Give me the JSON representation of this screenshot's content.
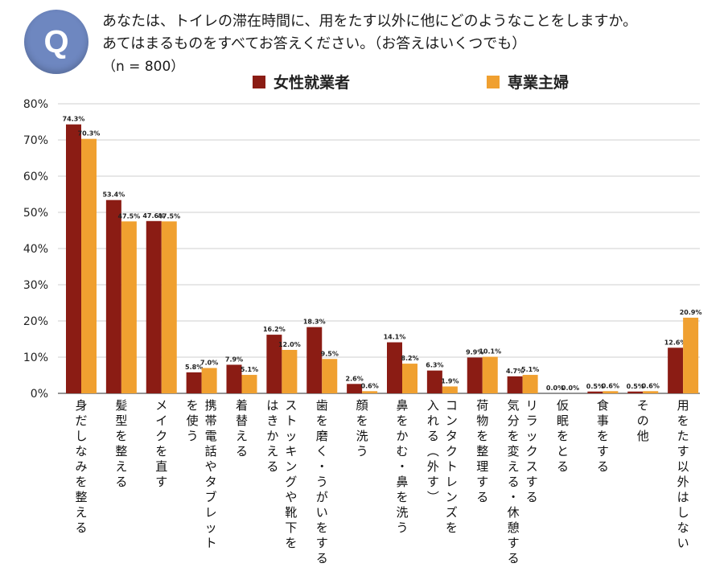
{
  "header": {
    "badge": "Q",
    "question_line1": "あなたは、トイレの滞在時間に、用をたす以外に他にどのようなことをしますか。",
    "question_line2": "あてはまるものをすべてお答えください。（お答えはいくつでも）",
    "sample_size": "（n = 800）"
  },
  "chart_data": {
    "type": "bar",
    "title": "",
    "xlabel": "",
    "ylabel": "",
    "ylim": [
      0,
      80
    ],
    "yticks": [
      "0%",
      "10%",
      "20%",
      "30%",
      "40%",
      "50%",
      "60%",
      "70%",
      "80%"
    ],
    "grid": true,
    "legend_position": "top",
    "categories": [
      "身だしなみを整える",
      "髪型を整える",
      "メイクを直す",
      "携帯電話やタブレットを使う",
      "着替える",
      "ストッキングや靴下をはきかえる",
      "歯を磨く・うがいをする",
      "顔を洗う",
      "鼻をかむ・鼻を洗う",
      "コンタクトレンズを入れる（外す）",
      "荷物を整理する",
      "リラックスする気分を変える・休憩する",
      "仮眠をとる",
      "食事をする",
      "その他",
      "用をたす以外はしない"
    ],
    "category_lines": [
      [
        "身だしなみを整える"
      ],
      [
        "髪型を整える"
      ],
      [
        "メイクを直す"
      ],
      [
        "携帯電話やタブレット",
        "を使う"
      ],
      [
        "着替える"
      ],
      [
        "ストッキングや靴下を",
        "はきかえる"
      ],
      [
        "歯を磨く・うがいをする"
      ],
      [
        "顔を洗う"
      ],
      [
        "鼻をかむ・鼻を洗う"
      ],
      [
        "コンタクトレンズを",
        "入れる（外す）"
      ],
      [
        "荷物を整理する"
      ],
      [
        "リラックスする",
        "気分を変える・休憩する"
      ],
      [
        "仮眠をとる"
      ],
      [
        "食事をする"
      ],
      [
        "その他"
      ],
      [
        "用をたす以外はしない"
      ]
    ],
    "series": [
      {
        "name": "女性就業者",
        "color": "#8b1c14",
        "values": [
          74.3,
          53.4,
          47.6,
          5.8,
          7.9,
          16.2,
          18.3,
          2.6,
          14.1,
          6.3,
          9.9,
          4.7,
          0.0,
          0.5,
          0.5,
          12.6
        ],
        "labels": [
          "74.3%",
          "53.4%",
          "47.6%",
          "5.8%",
          "7.9%",
          "16.2%",
          "18.3%",
          "2.6%",
          "14.1%",
          "6.3%",
          "9.9%",
          "4.7%",
          "0.0%",
          "0.5%",
          "0.5%",
          "12.6%"
        ]
      },
      {
        "name": "専業主婦",
        "color": "#f0a030",
        "values": [
          70.3,
          47.5,
          47.5,
          7.0,
          5.1,
          12.0,
          9.5,
          0.6,
          8.2,
          1.9,
          10.1,
          5.1,
          0.0,
          0.6,
          0.6,
          20.9
        ],
        "labels": [
          "70.3%",
          "47.5%",
          "47.5%",
          "7.0%",
          "5.1%",
          "12.0%",
          "9.5%",
          "0.6%",
          "8.2%",
          "1.9%",
          "10.1%",
          "5.1%",
          "0.0%",
          "0.6%",
          "0.6%",
          "20.9%"
        ]
      }
    ]
  }
}
